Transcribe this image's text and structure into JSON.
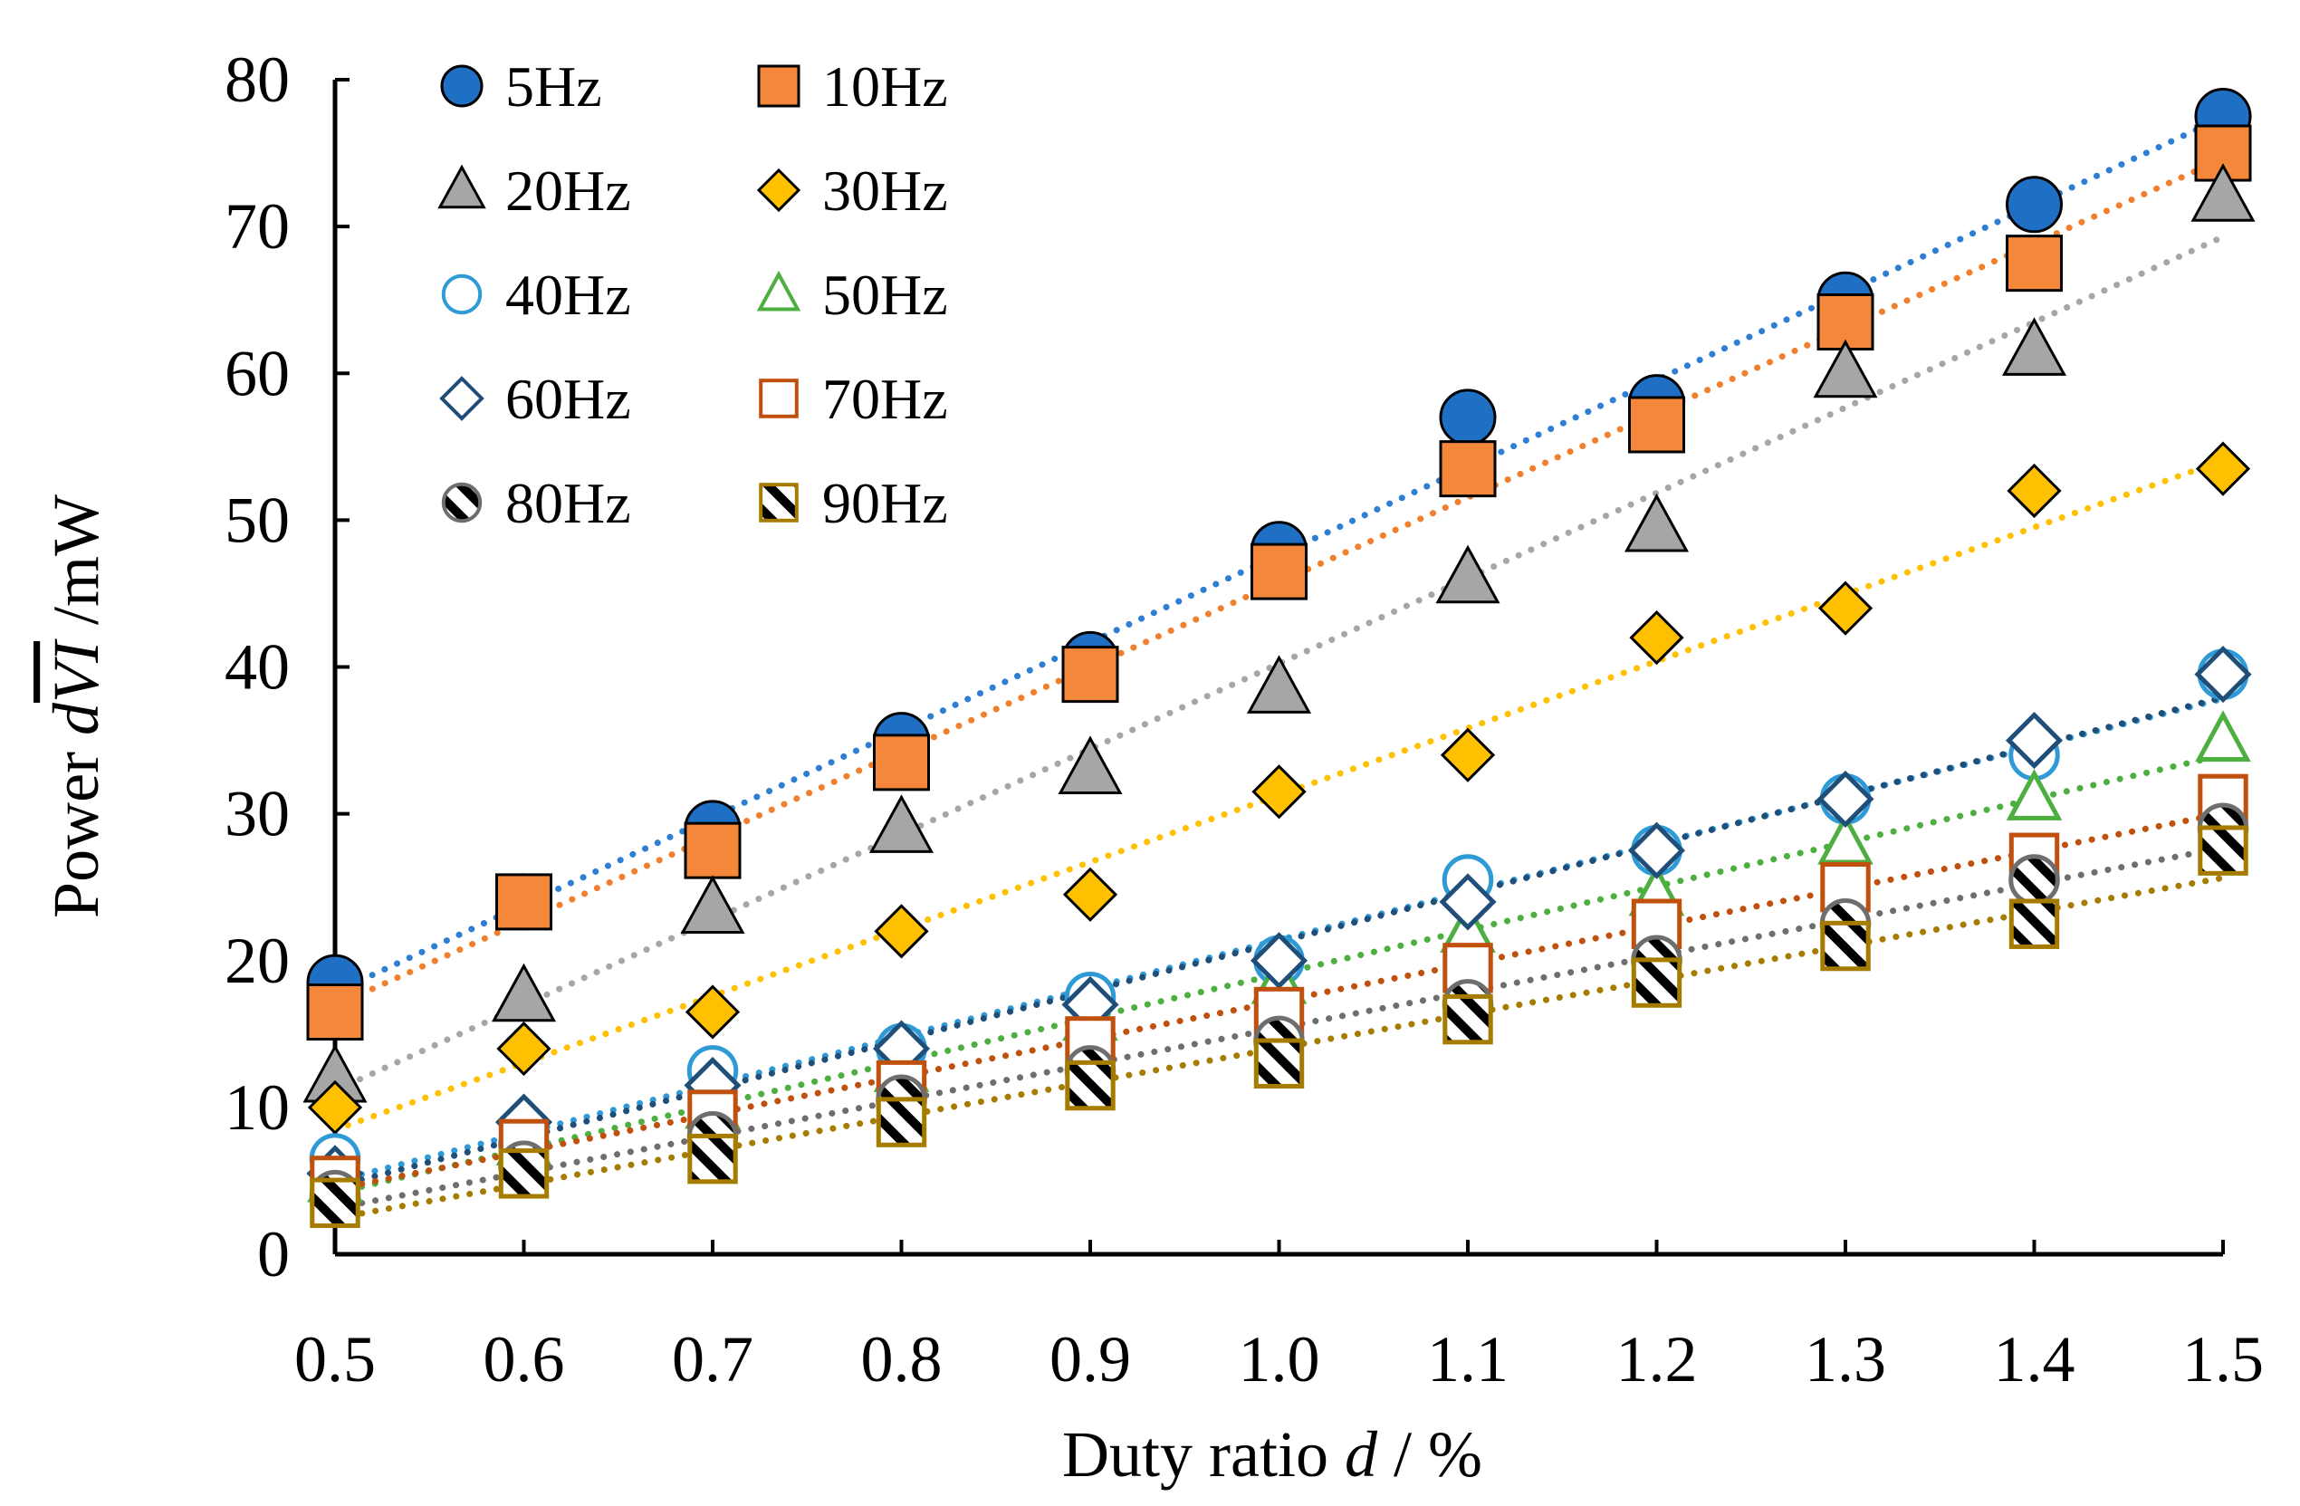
{
  "chart_data": {
    "type": "scatter",
    "title": "",
    "xlabel": "Duty ratio d / %",
    "xlabel_parts": {
      "prefix": "Duty ratio ",
      "var": "d",
      "suffix": " / %"
    },
    "ylabel": "Power dVI /mW",
    "ylabel_parts": {
      "prefix": "Power ",
      "var1": "d",
      "var2": "VI",
      "suffix": " /mW"
    },
    "xlim": [
      0.5,
      1.5
    ],
    "ylim": [
      0,
      80
    ],
    "x": [
      0.5,
      0.6,
      0.7,
      0.8,
      0.9,
      1.0,
      1.1,
      1.2,
      1.3,
      1.4,
      1.5
    ],
    "x_ticks": [
      "0.5",
      "0.6",
      "0.7",
      "0.8",
      "0.9",
      "1.0",
      "1.1",
      "1.2",
      "1.3",
      "1.4",
      "1.5"
    ],
    "y_ticks": [
      "0",
      "10",
      "20",
      "30",
      "40",
      "50",
      "60",
      "70",
      "80"
    ],
    "legend_position": "top-left",
    "trendlines": "linear, dotted",
    "series": [
      {
        "name": "5Hz",
        "marker": "circle-filled",
        "color": "#1F6FC5",
        "trend_color": "#2E7FD4",
        "values": [
          18.5,
          24.0,
          29.0,
          35.0,
          40.5,
          48.0,
          57.0,
          58.0,
          65.0,
          71.5,
          77.5
        ]
      },
      {
        "name": "10Hz",
        "marker": "square-filled",
        "color": "#F4873A",
        "trend_color": "#F07F2E",
        "values": [
          16.5,
          24.0,
          27.5,
          33.5,
          39.5,
          46.5,
          53.5,
          56.5,
          63.5,
          67.5,
          75.0
        ]
      },
      {
        "name": "20Hz",
        "marker": "triangle-filled",
        "color": "#A6A6A6",
        "trend_color": "#A6A6A6",
        "values": [
          12.0,
          17.5,
          23.5,
          29.0,
          33.0,
          38.5,
          46.0,
          49.5,
          60.0,
          61.5,
          72.0
        ]
      },
      {
        "name": "30Hz",
        "marker": "diamond-filled",
        "color": "#FFC000",
        "trend_color": "#FFC000",
        "values": [
          10.0,
          14.0,
          16.5,
          22.0,
          24.5,
          31.5,
          34.0,
          42.0,
          44.0,
          52.0,
          53.5
        ]
      },
      {
        "name": "40Hz",
        "marker": "circle-open",
        "color": "#2E9AD6",
        "trend_color": "#2E9AD6",
        "values": [
          6.5,
          7.5,
          12.5,
          14.0,
          17.5,
          20.0,
          25.5,
          27.5,
          31.0,
          34.0,
          39.5
        ]
      },
      {
        "name": "50Hz",
        "marker": "triangle-open",
        "color": "#4CAF3F",
        "trend_color": "#4CAF3F",
        "values": [
          5.0,
          7.5,
          10.0,
          12.5,
          16.0,
          18.5,
          22.0,
          24.5,
          28.0,
          31.0,
          35.0
        ]
      },
      {
        "name": "60Hz",
        "marker": "diamond-open",
        "color": "#1F4E79",
        "trend_color": "#1F4E79",
        "values": [
          5.5,
          9.0,
          11.5,
          14.0,
          17.0,
          20.0,
          24.0,
          27.5,
          31.0,
          35.0,
          39.5
        ]
      },
      {
        "name": "70Hz",
        "marker": "square-open",
        "color": "#C0500E",
        "trend_color": "#C0500E",
        "values": [
          5.0,
          7.5,
          9.5,
          11.5,
          14.5,
          16.5,
          19.5,
          22.5,
          25.0,
          27.0,
          31.0
        ]
      },
      {
        "name": "80Hz",
        "marker": "circle-hatched",
        "color": "#6E6E6E",
        "trend_color": "#6E6E6E",
        "values": [
          4.0,
          6.0,
          8.0,
          10.5,
          12.5,
          14.5,
          17.0,
          20.0,
          22.5,
          25.5,
          29.0
        ]
      },
      {
        "name": "90Hz",
        "marker": "square-hatched",
        "color": "#A67C00",
        "trend_color": "#A67C00",
        "values": [
          3.5,
          5.5,
          6.5,
          9.0,
          11.5,
          13.0,
          16.0,
          18.5,
          21.0,
          22.5,
          27.5
        ]
      }
    ]
  }
}
